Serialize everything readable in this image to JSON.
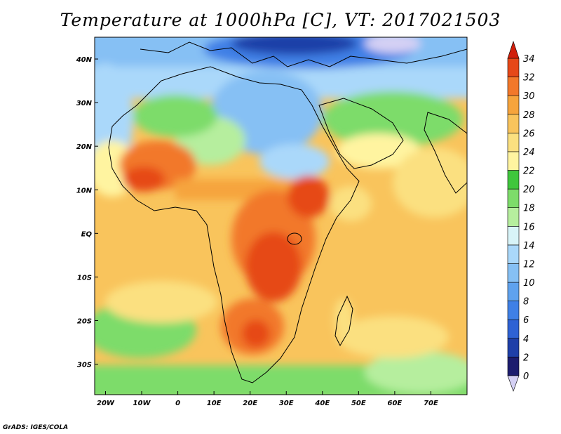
{
  "title": "Temperature at 1000hPa [C], VT: 2017021503",
  "credit": "GrADS: IGES/COLA",
  "map": {
    "projection": "lat-lon",
    "lat_range": [
      -37,
      45
    ],
    "lon_range": [
      -23,
      80
    ],
    "lat_ticks": [
      {
        "value": 40,
        "label": "40N"
      },
      {
        "value": 30,
        "label": "30N"
      },
      {
        "value": 20,
        "label": "20N"
      },
      {
        "value": 10,
        "label": "10N"
      },
      {
        "value": 0,
        "label": "EQ"
      },
      {
        "value": -10,
        "label": "10S"
      },
      {
        "value": -20,
        "label": "20S"
      },
      {
        "value": -30,
        "label": "30S"
      }
    ],
    "lon_ticks": [
      {
        "value": -20,
        "label": "20W"
      },
      {
        "value": -10,
        "label": "10W"
      },
      {
        "value": 0,
        "label": "0"
      },
      {
        "value": 10,
        "label": "10E"
      },
      {
        "value": 20,
        "label": "20E"
      },
      {
        "value": 30,
        "label": "30E"
      },
      {
        "value": 40,
        "label": "40E"
      },
      {
        "value": 50,
        "label": "50E"
      },
      {
        "value": 60,
        "label": "60E"
      },
      {
        "value": 70,
        "label": "70E"
      }
    ]
  },
  "colorbar": {
    "levels": [
      "0",
      "2",
      "4",
      "6",
      "8",
      "10",
      "12",
      "14",
      "16",
      "18",
      "20",
      "22",
      "24",
      "26",
      "28",
      "30",
      "32",
      "34"
    ],
    "colors": [
      "#1c1c6e",
      "#1e3fa8",
      "#2e62d4",
      "#3f80e6",
      "#5fa2ee",
      "#86c0f4",
      "#aad8fa",
      "#d8f4f8",
      "#b6ee9e",
      "#7ddc6a",
      "#3fc63c",
      "#fff4a0",
      "#fbe080",
      "#f9c45c",
      "#f6a43c",
      "#f2782a",
      "#e64818"
    ],
    "below_color": "#d4d0f4",
    "above_color": "#d01e0a"
  }
}
